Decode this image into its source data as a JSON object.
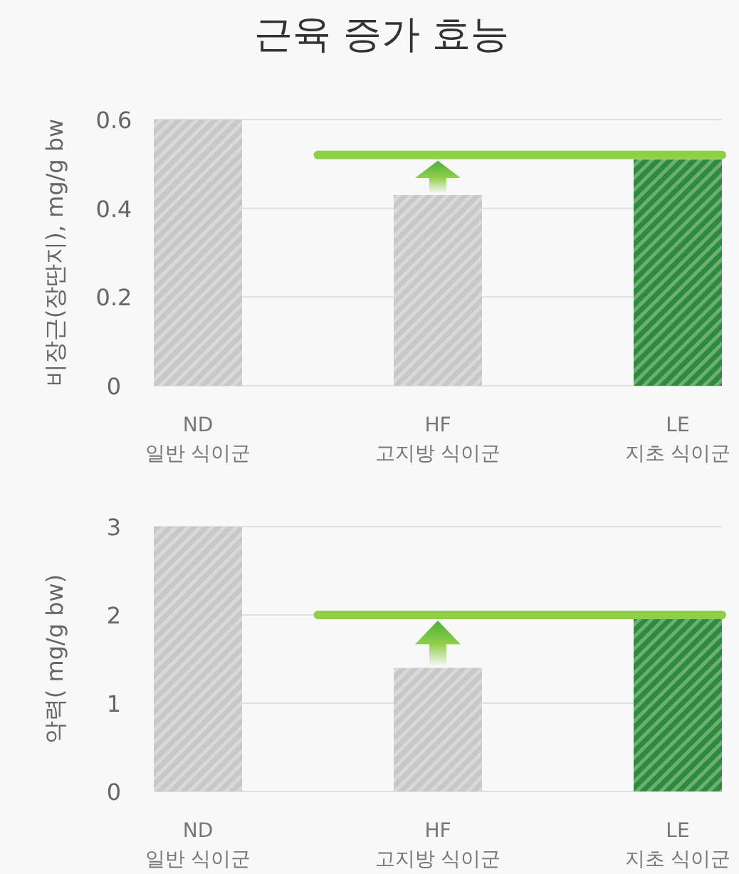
{
  "chart_data": [
    {
      "type": "bar",
      "title": "근육 증가 효능",
      "ylabel": "비장근(장딴지), mg/g bw",
      "categories": [
        "ND\n일반 식이군",
        "HF\n고지방 식이군",
        "LE\n지초 식이군"
      ],
      "values": [
        0.6,
        0.43,
        0.51
      ],
      "colors": [
        "#c8c8c8",
        "#c8c8c8",
        "#2e8b3c"
      ],
      "ylim": [
        0,
        0.6
      ],
      "yticks": [
        0,
        0.2,
        0.4,
        0.6
      ],
      "grid": "y",
      "ref_lines": [
        {
          "axis": "y",
          "value": 0.52,
          "color": "#8fce4a"
        }
      ]
    },
    {
      "type": "bar",
      "ylabel": "악력( mg/g bw)",
      "categories": [
        "ND\n일반 식이군",
        "HF\n고지방 식이군",
        "LE\n지초 식이군"
      ],
      "values": [
        3,
        1.4,
        2
      ],
      "colors": [
        "#c8c8c8",
        "#c8c8c8",
        "#2e8b3c"
      ],
      "ylim": [
        0,
        3
      ],
      "yticks": [
        0,
        1,
        2,
        3
      ],
      "grid": "y",
      "ref_lines": [
        {
          "axis": "y",
          "value": 2,
          "color": "#8fce4a"
        }
      ]
    }
  ]
}
